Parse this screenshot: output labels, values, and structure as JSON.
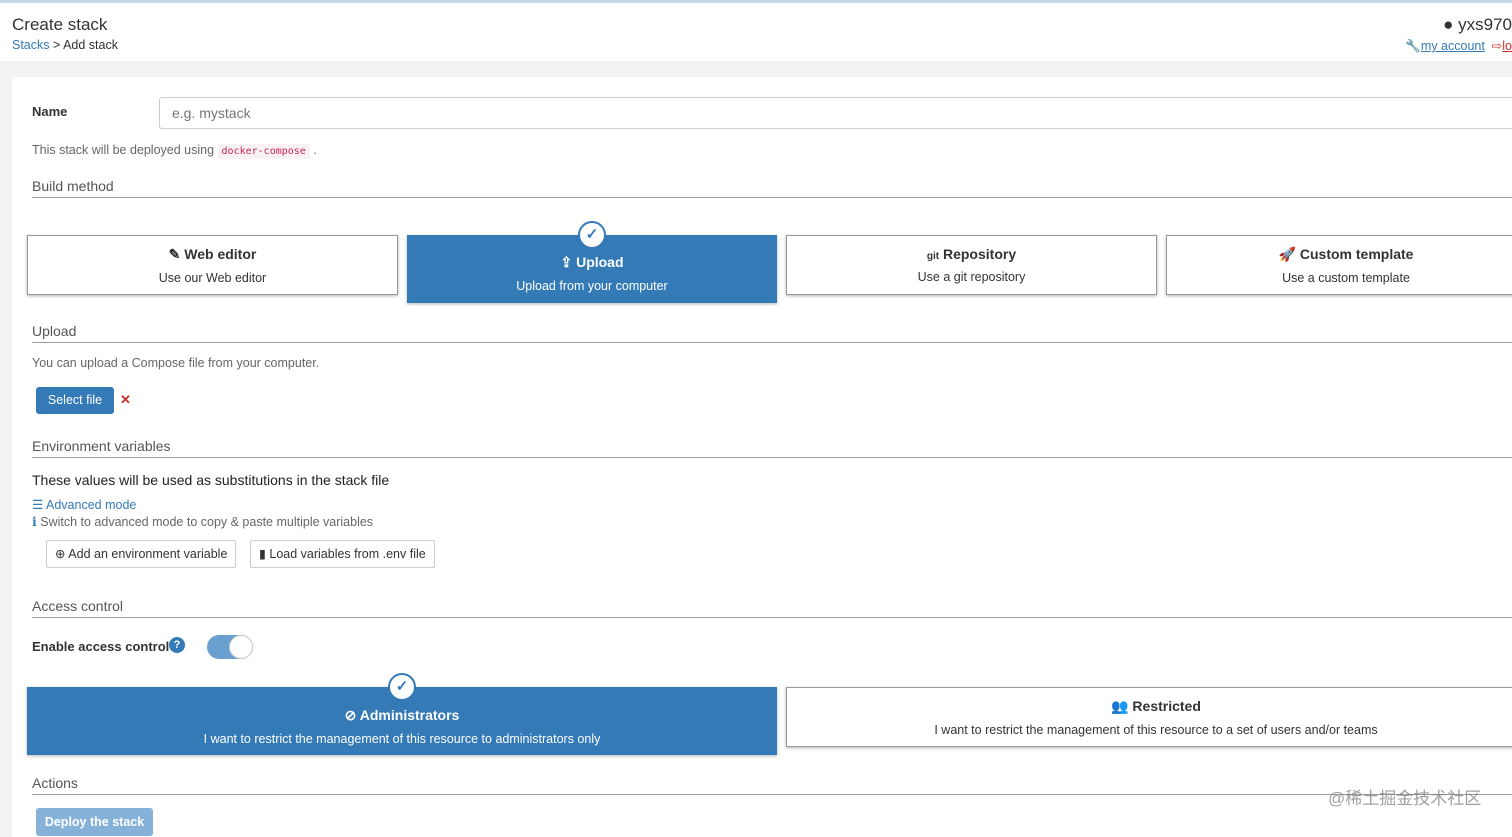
{
  "header": {
    "title": "Create stack",
    "breadcrumb_link": "Stacks",
    "breadcrumb_sep": " > ",
    "breadcrumb_current": "Add stack",
    "username": "yxs970",
    "my_account": "my account",
    "logout": "lo"
  },
  "form": {
    "name_label": "Name",
    "name_placeholder": "e.g. mystack",
    "deploy_note_prefix": "This stack will be deployed using",
    "deploy_note_code": "docker-compose",
    "deploy_note_suffix": "."
  },
  "build": {
    "section": "Build method",
    "methods": [
      {
        "title": "Web editor",
        "desc": "Use our Web editor",
        "icon": "edit-icon",
        "selected": false
      },
      {
        "title": "Upload",
        "desc": "Upload from your computer",
        "icon": "upload-icon",
        "selected": true
      },
      {
        "title": "Repository",
        "desc": "Use a git repository",
        "icon": "git-icon",
        "icon_text": "git",
        "selected": false
      },
      {
        "title": "Custom template",
        "desc": "Use a custom template",
        "icon": "rocket-icon",
        "selected": false
      }
    ]
  },
  "upload": {
    "section": "Upload",
    "desc": "You can upload a Compose file from your computer.",
    "select_file": "Select file",
    "clear": "✕"
  },
  "env": {
    "section": "Environment variables",
    "desc": "These values will be used as substitutions in the stack file",
    "advanced": "Advanced mode",
    "hint": "Switch to advanced mode to copy & paste multiple variables",
    "add": "Add an environment variable",
    "load": "Load variables from .env file"
  },
  "access": {
    "section": "Access control",
    "enable_label": "Enable access control",
    "enabled": true,
    "options": [
      {
        "title": "Administrators",
        "desc": "I want to restrict the management of this resource to administrators only",
        "selected": true
      },
      {
        "title": "Restricted",
        "desc": "I want to restrict the management of this resource to a set of users and/or teams",
        "selected": false
      }
    ]
  },
  "actions": {
    "section": "Actions",
    "deploy": "Deploy the stack"
  },
  "watermark": "@稀土掘金技术社区",
  "colors": {
    "primary": "#337ab7",
    "danger": "#c9302c"
  }
}
